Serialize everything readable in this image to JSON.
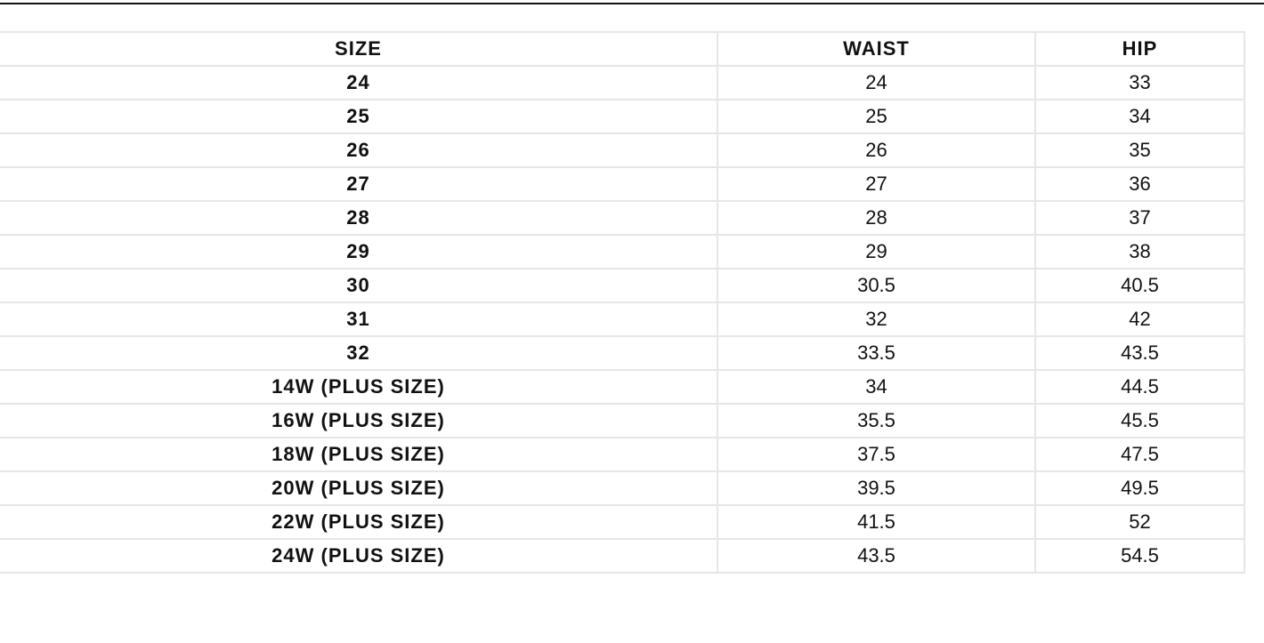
{
  "table": {
    "headers": [
      "SIZE",
      "WAIST",
      "HIP"
    ],
    "rows": [
      [
        "24",
        "24",
        "33"
      ],
      [
        "25",
        "25",
        "34"
      ],
      [
        "26",
        "26",
        "35"
      ],
      [
        "27",
        "27",
        "36"
      ],
      [
        "28",
        "28",
        "37"
      ],
      [
        "29",
        "29",
        "38"
      ],
      [
        "30",
        "30.5",
        "40.5"
      ],
      [
        "31",
        "32",
        "42"
      ],
      [
        "32",
        "33.5",
        "43.5"
      ],
      [
        "14W (PLUS SIZE)",
        "34",
        "44.5"
      ],
      [
        "16W (PLUS SIZE)",
        "35.5",
        "45.5"
      ],
      [
        "18W (PLUS SIZE)",
        "37.5",
        "47.5"
      ],
      [
        "20W (PLUS SIZE)",
        "39.5",
        "49.5"
      ],
      [
        "22W (PLUS SIZE)",
        "41.5",
        "52"
      ],
      [
        "24W (PLUS SIZE)",
        "43.5",
        "54.5"
      ]
    ]
  }
}
